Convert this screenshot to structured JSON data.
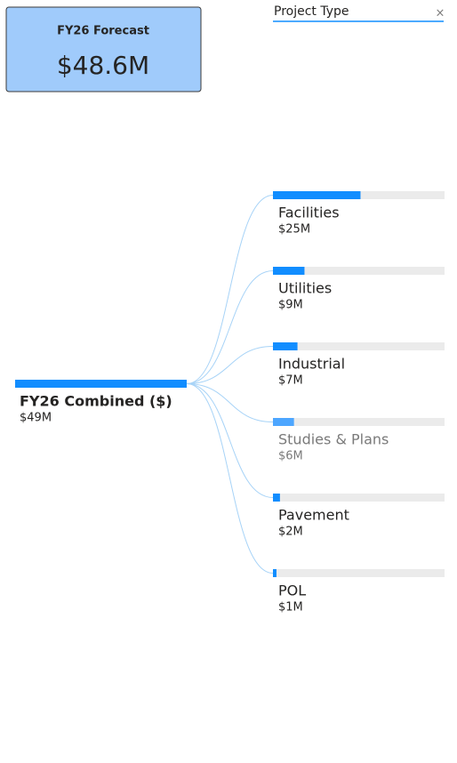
{
  "card": {
    "title": "FY26 Forecast",
    "value": "$48.6M"
  },
  "chart_data": {
    "type": "decomposition_tree",
    "header": "Project Type",
    "close_icon": "×",
    "root": {
      "name": "FY26 Combined ($)",
      "value": 49,
      "value_label": "$49M"
    },
    "categories": [
      "Facilities",
      "Utilities",
      "Industrial",
      "Studies & Plans",
      "Pavement",
      "POL"
    ],
    "values": [
      25,
      9,
      7,
      6,
      2,
      1
    ],
    "value_labels": [
      "$25M",
      "$9M",
      "$7M",
      "$6M",
      "$2M",
      "$1M"
    ],
    "colors": [
      "#118dff",
      "#118dff",
      "#118dff",
      "#4da6ff",
      "#118dff",
      "#118dff"
    ],
    "color": "#118dff"
  }
}
